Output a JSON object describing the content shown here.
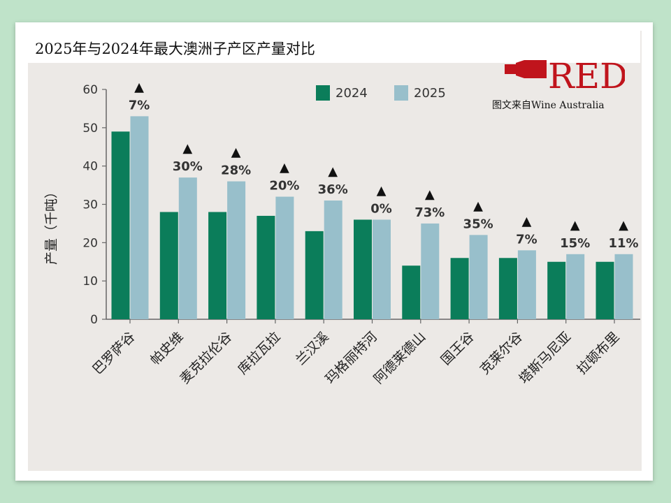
{
  "title": "2025年与2024年最大澳洲子产区产量对比",
  "source": "图文来自Wine Australia",
  "logo_text": "RED",
  "colors": {
    "series_2024": "#0b7d5a",
    "series_2025": "#98bfcb",
    "logo_red": "#c0141c",
    "background": "#bfe3c9"
  },
  "chart_data": {
    "type": "bar",
    "ylabel": "产量（千吨）",
    "ylim": [
      0,
      60
    ],
    "yticks": [
      "0",
      "10",
      "20",
      "30",
      "40",
      "50",
      "60"
    ],
    "grid": false,
    "legend_position": "top-center",
    "categories": [
      "巴罗萨谷",
      "帕史维",
      "麦克拉伦谷",
      "库拉瓦拉",
      "兰汉溪",
      "玛格丽特河",
      "阿德莱德山",
      "国王谷",
      "克莱尔谷",
      "塔斯马尼亚",
      "拉顿布里"
    ],
    "series": [
      {
        "name": "2024",
        "values": [
          49,
          28,
          28,
          27,
          23,
          26,
          14,
          16,
          16,
          15,
          15
        ]
      },
      {
        "name": "2025",
        "values": [
          53,
          37,
          36,
          32,
          31,
          26,
          25,
          22,
          18,
          17,
          17
        ]
      }
    ],
    "annotations": [
      "7%",
      "30%",
      "28%",
      "20%",
      "36%",
      "0%",
      "73%",
      "35%",
      "7%",
      "15%",
      "11%"
    ],
    "annotation_marker": "▲"
  }
}
